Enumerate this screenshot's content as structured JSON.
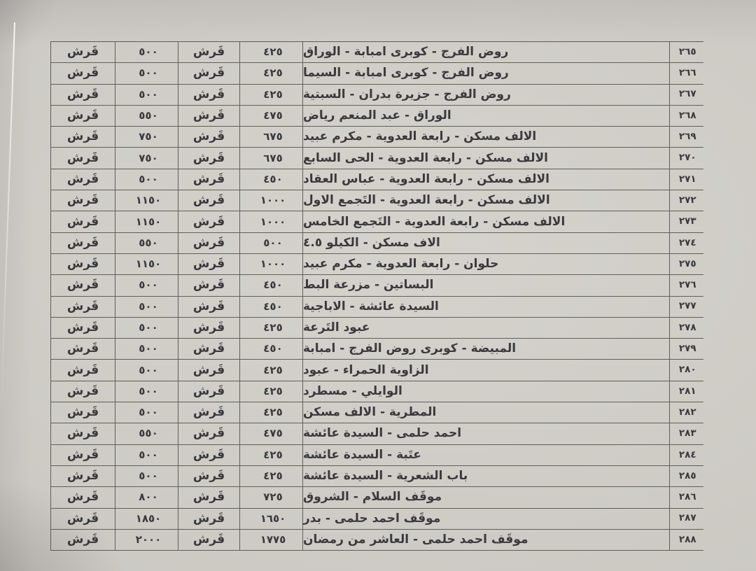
{
  "paper": {
    "background_color": "#d3d0ca",
    "line_color": "#484643",
    "text_color": "#3a393d"
  },
  "table": {
    "rows": [
      {
        "no": "٢٦٥",
        "route": "روض الفرج - كوبرى امبابة - الوراق",
        "value1": "٤٢٥",
        "unit1": "قَرش",
        "value2": "٥٠٠",
        "unit2": "قَرش"
      },
      {
        "no": "٢٦٦",
        "route": "روض الفرج - كوبرى امبابة - السيما",
        "value1": "٤٢٥",
        "unit1": "قَرش",
        "value2": "٥٠٠",
        "unit2": "قَرش"
      },
      {
        "no": "٢٦٧",
        "route": "روض الفرج - جزيرة بدران - السبتية",
        "value1": "٤٢٥",
        "unit1": "قَرش",
        "value2": "٥٠٠",
        "unit2": "قَرش"
      },
      {
        "no": "٢٦٨",
        "route": "الوراق - عبد المنعم رياض",
        "value1": "٤٧٥",
        "unit1": "قَرش",
        "value2": "٥٥٠",
        "unit2": "قَرش"
      },
      {
        "no": "٢٦٩",
        "route": "الالف مسكن - رابعة العدوية - مكرم عبيد",
        "value1": "٦٧٥",
        "unit1": "قَرش",
        "value2": "٧٥٠",
        "unit2": "قَرش"
      },
      {
        "no": "٢٧٠",
        "route": "الالف مسكن - رابعة العدوية - الحى السابع",
        "value1": "٦٧٥",
        "unit1": "قَرش",
        "value2": "٧٥٠",
        "unit2": "قَرش"
      },
      {
        "no": "٢٧١",
        "route": "الالف مسكن - رابعة العدوية - عباس العقاد",
        "value1": "٤٥٠",
        "unit1": "قَرش",
        "value2": "٥٠٠",
        "unit2": "قَرش"
      },
      {
        "no": "٢٧٢",
        "route": "الالف مسكن - رابعة العدوية - التَجمع الاول",
        "value1": "١٠٠٠",
        "unit1": "قَرش",
        "value2": "١١٥٠",
        "unit2": "قَرش"
      },
      {
        "no": "٢٧٣",
        "route": "الالف مسكن - رابعة العدوية - التَجمع الخامس",
        "value1": "١٠٠٠",
        "unit1": "قَرش",
        "value2": "١١٥٠",
        "unit2": "قَرش"
      },
      {
        "no": "٢٧٤",
        "route": "الاف مسكن - الكيلو ٤.٥",
        "value1": "٥٠٠",
        "unit1": "قَرش",
        "value2": "٥٥٠",
        "unit2": "قَرش"
      },
      {
        "no": "٢٧٥",
        "route": "حلوان - رابعة العدوية - مكرم عبيد",
        "value1": "١٠٠٠",
        "unit1": "قَرش",
        "value2": "١١٥٠",
        "unit2": "قَرش"
      },
      {
        "no": "٢٧٦",
        "route": "البساتين - مزرعة البط",
        "value1": "٤٥٠",
        "unit1": "قَرش",
        "value2": "٥٠٠",
        "unit2": "قَرش"
      },
      {
        "no": "٢٧٧",
        "route": "السيدة عائشة - الاباجية",
        "value1": "٤٥٠",
        "unit1": "قَرش",
        "value2": "٥٠٠",
        "unit2": "قَرش"
      },
      {
        "no": "٢٧٨",
        "route": "عبود التَرعة",
        "value1": "٤٢٥",
        "unit1": "قَرش",
        "value2": "٥٠٠",
        "unit2": "قَرش"
      },
      {
        "no": "٢٧٩",
        "route": "المبيضة - كوبرى روض الفرج - امبابة",
        "value1": "٤٥٠",
        "unit1": "قَرش",
        "value2": "٥٠٠",
        "unit2": "قَرش"
      },
      {
        "no": "٢٨٠",
        "route": "الزاوية الحمراء - عبود",
        "value1": "٤٢٥",
        "unit1": "قَرش",
        "value2": "٥٠٠",
        "unit2": "قَرش"
      },
      {
        "no": "٢٨١",
        "route": "الوايلي - مسطرد",
        "value1": "٤٢٥",
        "unit1": "قَرش",
        "value2": "٥٠٠",
        "unit2": "قَرش"
      },
      {
        "no": "٢٨٢",
        "route": "المطرية - الالف مسكن",
        "value1": "٤٢٥",
        "unit1": "قَرش",
        "value2": "٥٠٠",
        "unit2": "قَرش"
      },
      {
        "no": "٢٨٣",
        "route": "احمد حلمى - السيدة عائشة",
        "value1": "٤٧٥",
        "unit1": "قَرش",
        "value2": "٥٥٠",
        "unit2": "قَرش"
      },
      {
        "no": "٢٨٤",
        "route": "عتَبة - السيدة عائشة",
        "value1": "٤٢٥",
        "unit1": "قَرش",
        "value2": "٥٠٠",
        "unit2": "قَرش"
      },
      {
        "no": "٢٨٥",
        "route": "باب الشعرية - السيدة عائشة",
        "value1": "٤٢٥",
        "unit1": "قَرش",
        "value2": "٥٠٠",
        "unit2": "قَرش"
      },
      {
        "no": "٢٨٦",
        "route": "موقَف السلام - الشروق",
        "value1": "٧٢٥",
        "unit1": "قَرش",
        "value2": "٨٠٠",
        "unit2": "قَرش"
      },
      {
        "no": "٢٨٧",
        "route": "موقَف احمد حلمى - بدر",
        "value1": "١٦٥٠",
        "unit1": "قَرش",
        "value2": "١٨٥٠",
        "unit2": "قَرش"
      },
      {
        "no": "٢٨٨",
        "route": "موقَف احمد حلمى - العاشر من رمضان",
        "value1": "١٧٧٥",
        "unit1": "قَرش",
        "value2": "٢٠٠٠",
        "unit2": "قَرش"
      }
    ]
  }
}
